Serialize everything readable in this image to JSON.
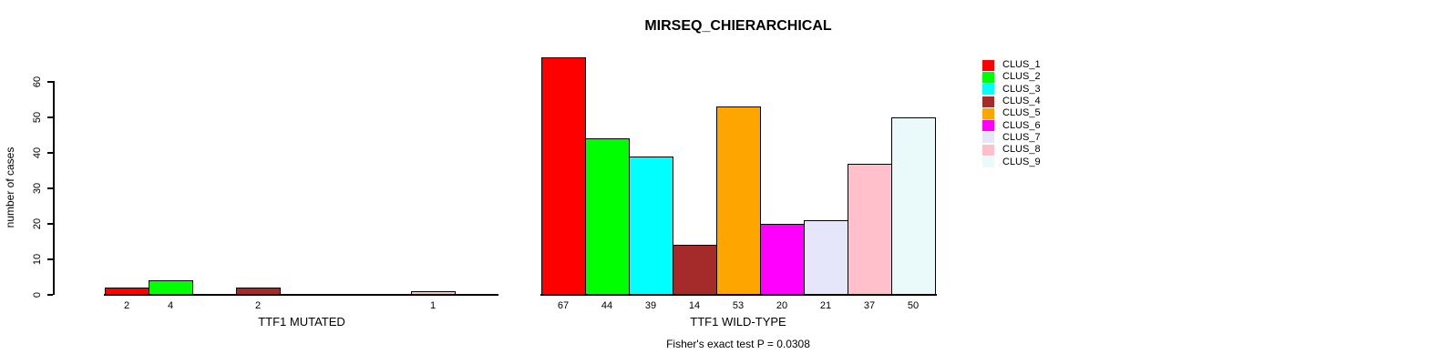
{
  "chart_data": {
    "type": "bar",
    "title": "MIRSEQ_CHIERARCHICAL",
    "ylabel": "number of cases",
    "ylim": [
      0,
      60
    ],
    "yticks": [
      0,
      10,
      20,
      30,
      40,
      50,
      60
    ],
    "grid": false,
    "legend_position": "right",
    "clusters": [
      {
        "label": "CLUS_1",
        "color": "#FF0000"
      },
      {
        "label": "CLUS_2",
        "color": "#00FF00"
      },
      {
        "label": "CLUS_3",
        "color": "#00FFFF"
      },
      {
        "label": "CLUS_4",
        "color": "#A52A2A"
      },
      {
        "label": "CLUS_5",
        "color": "#FFA500"
      },
      {
        "label": "CLUS_6",
        "color": "#FF00FF"
      },
      {
        "label": "CLUS_7",
        "color": "#E6E6FA"
      },
      {
        "label": "CLUS_8",
        "color": "#FFC0CB"
      },
      {
        "label": "CLUS_9",
        "color": "#EAFAFA"
      }
    ],
    "groups": [
      {
        "label": "TTF1 MUTATED",
        "values": [
          2,
          4,
          0,
          2,
          0,
          0,
          0,
          1,
          0
        ],
        "bar_labels": [
          "2",
          "4",
          "",
          "2",
          "",
          "",
          "",
          "1",
          ""
        ]
      },
      {
        "label": "TTF1 WILD-TYPE",
        "values": [
          67,
          44,
          39,
          14,
          53,
          20,
          21,
          37,
          50
        ],
        "bar_labels": [
          "67",
          "44",
          "39",
          "14",
          "53",
          "20",
          "21",
          "37",
          "50"
        ]
      }
    ],
    "annotation": "Fisher's exact test P = 0.0308"
  }
}
